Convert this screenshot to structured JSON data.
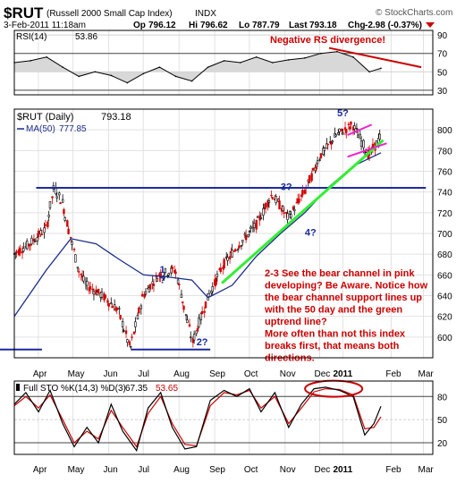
{
  "header": {
    "symbol": "$RUT",
    "name": "(Russell 2000 Small Cap Index)",
    "exchange": "INDX",
    "date": "3-Feb-2011 11:18am",
    "open_label": "Op",
    "open": "796.12",
    "high_label": "Hi",
    "high": "796.62",
    "low_label": "Lo",
    "low": "787.79",
    "last_label": "Last",
    "last": "793.18",
    "change_label": "Chg",
    "change": "-2.98 (-0.37%)",
    "watermark": "© StockCharts.com"
  },
  "colors": {
    "price": "#000000",
    "ma": "#1c2c8c",
    "sto_k": "#000000",
    "sto_d": "#cc0000",
    "annotation": "#cc0000",
    "blue_text": "#1a2a9a",
    "green_trend": "#33ee33",
    "pink_channel": "#ee22cc",
    "rsi_fill": "#d8d8d8"
  },
  "chart_data": [
    {
      "type": "line",
      "panel": "rsi",
      "label": "RSI(14)",
      "value_label": "53.86",
      "ylim": [
        25,
        95
      ],
      "yticks": [
        30,
        50,
        70,
        90
      ],
      "x": [
        "2010-03-22",
        "2010-04-05",
        "2010-04-19",
        "2010-05-03",
        "2010-05-17",
        "2010-05-31",
        "2010-06-14",
        "2010-06-28",
        "2010-07-12",
        "2010-07-26",
        "2010-08-09",
        "2010-08-23",
        "2010-09-06",
        "2010-09-20",
        "2010-10-04",
        "2010-10-18",
        "2010-11-01",
        "2010-11-15",
        "2010-11-29",
        "2010-12-13",
        "2010-12-27",
        "2011-01-10",
        "2011-01-24",
        "2011-02-03"
      ],
      "values": [
        60,
        62,
        66,
        55,
        45,
        50,
        46,
        38,
        48,
        55,
        45,
        40,
        55,
        62,
        60,
        66,
        60,
        63,
        65,
        70,
        72,
        66,
        50,
        53.86
      ]
    },
    {
      "type": "line",
      "panel": "price",
      "label": "$RUT (Daily)",
      "value_label": "793.18",
      "ylim": [
        580,
        820
      ],
      "yticks": [
        600,
        620,
        640,
        660,
        680,
        700,
        720,
        740,
        760,
        780,
        800
      ],
      "x_months": [
        "Apr",
        "May",
        "Jun",
        "Jul",
        "Aug",
        "Sep",
        "Oct",
        "Nov",
        "Dec",
        "2011",
        "Feb",
        "Mar"
      ],
      "x": [
        "2010-03-22",
        "2010-04-05",
        "2010-04-19",
        "2010-04-26",
        "2010-05-03",
        "2010-05-10",
        "2010-05-17",
        "2010-05-24",
        "2010-06-07",
        "2010-06-21",
        "2010-07-01",
        "2010-07-12",
        "2010-07-26",
        "2010-08-09",
        "2010-08-24",
        "2010-09-07",
        "2010-09-20",
        "2010-10-04",
        "2010-10-18",
        "2010-11-01",
        "2010-11-15",
        "2010-11-29",
        "2010-12-13",
        "2010-12-27",
        "2011-01-10",
        "2011-01-24",
        "2011-02-03"
      ],
      "values": [
        680,
        690,
        705,
        744,
        730,
        698,
        665,
        650,
        640,
        625,
        588,
        640,
        660,
        665,
        595,
        640,
        670,
        690,
        708,
        738,
        715,
        740,
        775,
        795,
        805,
        775,
        793.18
      ],
      "series": [
        {
          "name": "MA(50)",
          "value_label": "777.85",
          "x": [
            "2010-03-22",
            "2010-04-19",
            "2010-05-10",
            "2010-06-01",
            "2010-06-21",
            "2010-07-12",
            "2010-08-02",
            "2010-08-23",
            "2010-09-06",
            "2010-09-27",
            "2010-10-18",
            "2010-11-08",
            "2010-11-29",
            "2010-12-20",
            "2011-01-10",
            "2011-02-03"
          ],
          "values": [
            620,
            665,
            695,
            690,
            675,
            660,
            658,
            655,
            638,
            650,
            678,
            700,
            720,
            745,
            765,
            777.85
          ]
        }
      ],
      "annotations": {
        "resistance_level": 744,
        "support_level": 588,
        "labels": [
          {
            "text": "1",
            "x": "2010-07-26",
            "y": 662
          },
          {
            "text": "?",
            "x": "2010-07-26",
            "y": 652
          },
          {
            "text": "2?",
            "x": "2010-08-27",
            "y": 592
          },
          {
            "text": "3?",
            "x": "2010-11-08",
            "y": 742
          },
          {
            "text": "4?",
            "x": "2010-11-29",
            "y": 698
          },
          {
            "text": "5?",
            "x": "2010-12-27",
            "y": 813
          }
        ],
        "rsi_note": "Negative RS divergence!",
        "note_lines": [
          "2-3 See the bear channel in pink",
          "developing?  Be Aware. Notice how",
          "the bear channel support lines up",
          "with the 50 day and the green",
          "uptrend line?",
          "More often than not this index",
          "breaks first, that means both",
          "directions."
        ]
      }
    },
    {
      "type": "line",
      "panel": "stochastic",
      "label": "Full STO %K(14,3) %D(3)",
      "k_value": "67.35",
      "d_value": "53.65",
      "ylim": [
        5,
        100
      ],
      "yticks": [
        20,
        50,
        80
      ],
      "x": [
        "2010-03-22",
        "2010-04-01",
        "2010-04-12",
        "2010-04-22",
        "2010-05-03",
        "2010-05-13",
        "2010-05-24",
        "2010-06-03",
        "2010-06-14",
        "2010-06-24",
        "2010-07-06",
        "2010-07-16",
        "2010-07-27",
        "2010-08-06",
        "2010-08-17",
        "2010-08-27",
        "2010-09-08",
        "2010-09-20",
        "2010-10-01",
        "2010-10-12",
        "2010-10-22",
        "2010-11-03",
        "2010-11-15",
        "2010-11-26",
        "2010-12-07",
        "2010-12-17",
        "2010-12-29",
        "2011-01-10",
        "2011-01-20",
        "2011-01-28",
        "2011-02-03"
      ],
      "series": [
        {
          "name": "%K",
          "values": [
            70,
            85,
            60,
            88,
            45,
            15,
            40,
            20,
            70,
            35,
            10,
            65,
            85,
            40,
            12,
            15,
            75,
            88,
            80,
            90,
            60,
            85,
            40,
            70,
            90,
            92,
            88,
            80,
            30,
            45,
            67.35
          ]
        },
        {
          "name": "%D",
          "values": [
            68,
            80,
            65,
            82,
            50,
            20,
            35,
            25,
            62,
            40,
            15,
            58,
            80,
            45,
            18,
            16,
            68,
            85,
            82,
            88,
            65,
            80,
            45,
            65,
            86,
            90,
            89,
            82,
            38,
            40,
            53.65
          ]
        }
      ]
    }
  ]
}
